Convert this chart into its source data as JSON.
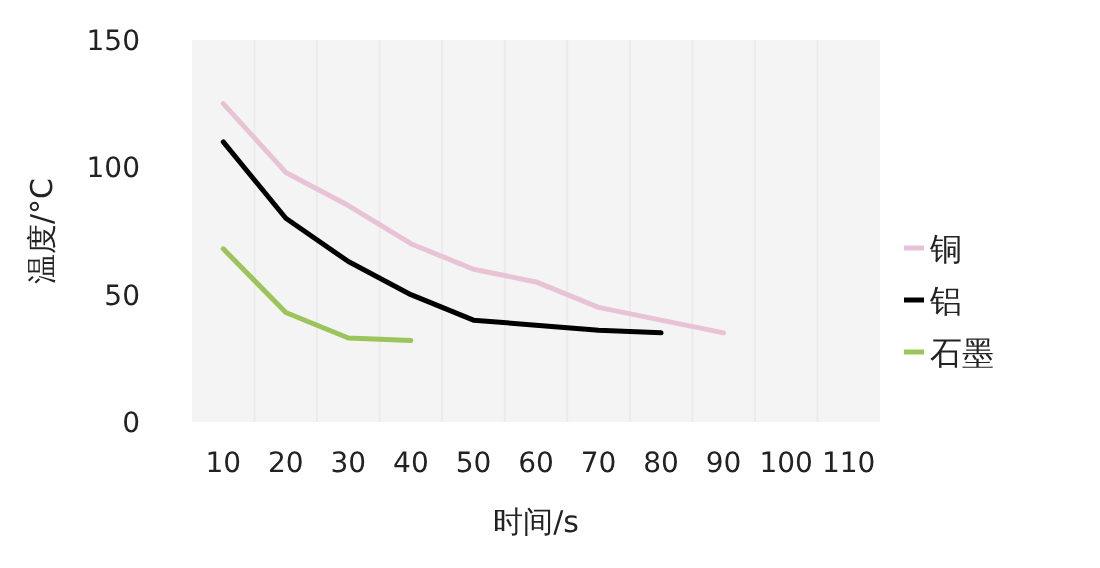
{
  "chart_data": {
    "type": "line",
    "xlabel": "时间/s",
    "ylabel": "温度/°C",
    "categories": [
      "10",
      "20",
      "30",
      "40",
      "50",
      "60",
      "70",
      "80",
      "90",
      "100",
      "110"
    ],
    "series": [
      {
        "name": "铜",
        "color": "#e8c3d6",
        "values": [
          125,
          98,
          85,
          70,
          60,
          55,
          45,
          40,
          35,
          null,
          null
        ]
      },
      {
        "name": "铝",
        "color": "#000000",
        "values": [
          110,
          80,
          63,
          50,
          40,
          38,
          36,
          35,
          null,
          null,
          null
        ]
      },
      {
        "name": "石墨",
        "color": "#9bc45a",
        "values": [
          68,
          43,
          33,
          32,
          null,
          null,
          null,
          null,
          null,
          null,
          null
        ]
      }
    ],
    "ylim": [
      0,
      150
    ],
    "yticks": [
      0,
      50,
      100,
      150
    ],
    "grid": "x",
    "legend": "right",
    "marker": "none",
    "line_style": "solid"
  }
}
